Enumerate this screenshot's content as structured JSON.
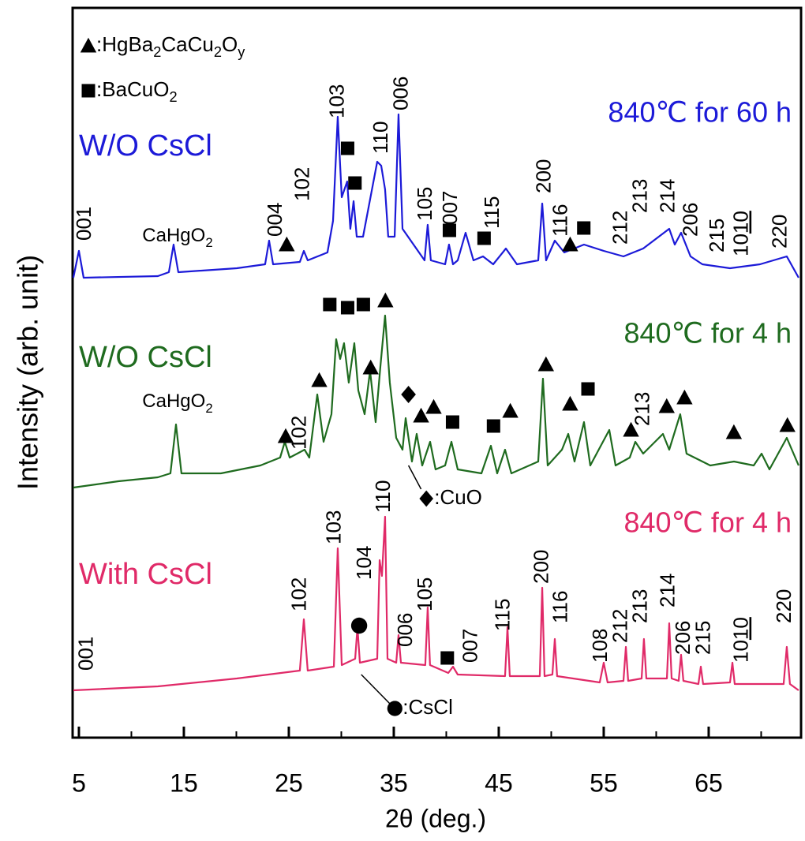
{
  "chart_data": {
    "type": "line",
    "x_label": "2θ (deg.)",
    "y_label": "Intensity (arb. unit)",
    "xlim": [
      4.4,
      73.8
    ],
    "xticks": [
      5,
      15,
      25,
      35,
      45,
      55,
      65
    ],
    "xminorticks": [
      10,
      20,
      30,
      40,
      50,
      60,
      70
    ],
    "ylim": [
      0,
      925
    ],
    "legend": [
      {
        "kind": "triangle",
        "style": "sub",
        "text": [
          ":HgBa",
          "2",
          "CaCu",
          "2",
          "O",
          "y"
        ]
      },
      {
        "kind": "square",
        "style": "sub",
        "text": [
          ":BaCuO",
          "2"
        ]
      }
    ],
    "series": [
      {
        "name": "W/O CsCl",
        "condition": "840℃ for 60 h",
        "color": "#1c1ad8",
        "x": [
          4.47,
          5,
          5.45,
          12.52,
          13.57,
          14.02,
          14.47,
          20.04,
          22.74,
          23.12,
          23.5,
          26.05,
          26.43,
          26.8,
          28.68,
          29.21,
          29.66,
          30.04,
          30.56,
          30.86,
          31.17,
          31.47,
          32.07,
          33.42,
          33.8,
          34.17,
          34.47,
          35.08,
          35.45,
          35.83,
          37.93,
          38.23,
          38.53,
          39.89,
          40.26,
          40.64,
          41.09,
          41.84,
          42.59,
          43.5,
          44.47,
          45.68,
          46.73,
          48.76,
          49.14,
          49.51,
          50.34,
          51.24,
          53.12,
          55.0,
          56.88,
          58.76,
          61.24,
          61.77,
          62.37,
          63.27,
          64.4,
          67.03,
          69.89,
          72.44,
          73.57
        ],
        "values": [
          583,
          617,
          583,
          585,
          590,
          625,
          590,
          595,
          600,
          630,
          600,
          603,
          617,
          605,
          615,
          655,
          787,
          685,
          705,
          645,
          680,
          635,
          635,
          730,
          725,
          695,
          635,
          635,
          790,
          645,
          605,
          650,
          605,
          600,
          625,
          600,
          605,
          640,
          605,
          610,
          600,
          620,
          600,
          605,
          677,
          605,
          630,
          615,
          625,
          617,
          610,
          620,
          645,
          625,
          640,
          610,
          600,
          595,
          600,
          610,
          583
        ],
        "labels": [
          {
            "text": "001",
            "x": 5.6,
            "y": 630
          },
          {
            "text": "004",
            "x": 23.8,
            "y": 635
          },
          {
            "text": "102",
            "x": 26.4,
            "y": 680
          },
          {
            "text": "103",
            "x": 29.7,
            "y": 785
          },
          {
            "text": "110",
            "x": 33.9,
            "y": 740
          },
          {
            "text": "006",
            "x": 35.8,
            "y": 795
          },
          {
            "text": "105",
            "x": 38.1,
            "y": 655
          },
          {
            "text": "007",
            "x": 40.5,
            "y": 650
          },
          {
            "text": "115",
            "x": 44.5,
            "y": 645
          },
          {
            "text": "200",
            "x": 49.4,
            "y": 690
          },
          {
            "text": "116",
            "x": 51.0,
            "y": 635
          },
          {
            "text": "212",
            "x": 56.7,
            "y": 625
          },
          {
            "text": "213",
            "x": 58.6,
            "y": 665
          },
          {
            "text": "214",
            "x": 61.2,
            "y": 665
          },
          {
            "text": "206",
            "x": 63.4,
            "y": 635
          },
          {
            "text": "215",
            "x": 65.9,
            "y": 615
          },
          {
            "text": [
              "10",
              "10"
            ],
            "style": "underline",
            "x": 68.2,
            "y": 610
          },
          {
            "text": "220",
            "x": 71.9,
            "y": 620
          }
        ],
        "notes": [
          {
            "text": [
              "CaHgO",
              "2"
            ],
            "style": "sub",
            "x": 14.4,
            "y": 635
          }
        ],
        "markers": [
          {
            "kind": "triangle",
            "x": 24.8,
            "y": 625
          },
          {
            "kind": "square",
            "x": 30.6,
            "y": 747
          },
          {
            "kind": "square",
            "x": 31.3,
            "y": 703
          },
          {
            "kind": "square",
            "x": 40.3,
            "y": 643
          },
          {
            "kind": "square",
            "x": 43.6,
            "y": 633
          },
          {
            "kind": "triangle",
            "x": 51.8,
            "y": 625
          },
          {
            "kind": "square",
            "x": 53.1,
            "y": 646
          }
        ]
      },
      {
        "name": "W/O CsCl",
        "condition": "840℃ for 4 h",
        "color": "#1f6b1f",
        "x": [
          4.47,
          8.76,
          12.52,
          13.72,
          14.25,
          14.77,
          18.53,
          22.29,
          24.17,
          24.62,
          25.08,
          26.5,
          26.95,
          27.71,
          28.31,
          29.06,
          29.51,
          29.89,
          30.26,
          30.71,
          31.24,
          31.62,
          32.22,
          32.74,
          33.27,
          33.72,
          34.17,
          34.62,
          35.23,
          35.83,
          36.13,
          36.73,
          37.18,
          37.71,
          38.46,
          38.98,
          39.89,
          40.49,
          41.09,
          43.35,
          44.25,
          44.85,
          45.6,
          46.2,
          48.76,
          49.21,
          49.66,
          51.02,
          51.62,
          52.22,
          53.12,
          53.72,
          55.53,
          56.13,
          57.48,
          58.01,
          58.76,
          60.64,
          61.24,
          62.29,
          62.89,
          65.15,
          67.41,
          69.29,
          70.04,
          70.79,
          72.44,
          73.57
        ],
        "values": [
          317,
          325,
          330,
          335,
          397,
          335,
          335,
          345,
          355,
          375,
          355,
          365,
          355,
          435,
          375,
          410,
          505,
          480,
          500,
          450,
          500,
          440,
          410,
          465,
          400,
          470,
          535,
          450,
          380,
          365,
          405,
          350,
          385,
          345,
          375,
          340,
          345,
          375,
          340,
          335,
          370,
          335,
          365,
          335,
          350,
          455,
          345,
          365,
          385,
          350,
          400,
          345,
          390,
          345,
          355,
          375,
          360,
          385,
          365,
          410,
          360,
          345,
          350,
          345,
          360,
          340,
          380,
          345
        ],
        "labels": [
          {
            "text": "102",
            "x": 26.1,
            "y": 365
          },
          {
            "text": "213",
            "x": 58.8,
            "y": 395
          }
        ],
        "notes": [
          {
            "text": [
              "CaHgO",
              "2"
            ],
            "style": "sub",
            "x": 14.4,
            "y": 425
          }
        ],
        "markers": [
          {
            "kind": "triangle",
            "x": 24.7,
            "y": 382
          },
          {
            "kind": "triangle",
            "x": 27.9,
            "y": 453
          },
          {
            "kind": "square",
            "x": 28.9,
            "y": 549
          },
          {
            "kind": "square",
            "x": 30.6,
            "y": 545
          },
          {
            "kind": "square",
            "x": 32.1,
            "y": 549
          },
          {
            "kind": "triangle",
            "x": 34.2,
            "y": 554
          },
          {
            "kind": "triangle",
            "x": 32.8,
            "y": 469
          },
          {
            "kind": "diamond",
            "x": 36.4,
            "y": 435
          },
          {
            "kind": "triangle",
            "x": 37.6,
            "y": 408
          },
          {
            "kind": "triangle",
            "x": 38.8,
            "y": 419
          },
          {
            "kind": "square",
            "x": 40.6,
            "y": 400
          },
          {
            "kind": "square",
            "x": 44.5,
            "y": 395
          },
          {
            "kind": "triangle",
            "x": 46.1,
            "y": 414
          },
          {
            "kind": "triangle",
            "x": 49.5,
            "y": 473
          },
          {
            "kind": "triangle",
            "x": 51.8,
            "y": 423
          },
          {
            "kind": "square",
            "x": 53.5,
            "y": 442
          },
          {
            "kind": "triangle",
            "x": 57.6,
            "y": 390
          },
          {
            "kind": "triangle",
            "x": 61.0,
            "y": 420
          },
          {
            "kind": "triangle",
            "x": 62.7,
            "y": 431
          },
          {
            "kind": "triangle",
            "x": 67.4,
            "y": 387
          },
          {
            "kind": "triangle",
            "x": 72.5,
            "y": 396
          }
        ],
        "callout": {
          "kind": "diamond",
          "text": ":CuO",
          "from": [
            36.4,
            345
          ],
          "to": [
            37.6,
            315
          ],
          "x": 38.1,
          "y": 303
        }
      },
      {
        "name": "With CsCl",
        "condition": "840℃ for 4 h",
        "color": "#e02a68",
        "x": [
          4.47,
          12.52,
          20.04,
          26.05,
          26.43,
          26.8,
          29.29,
          29.66,
          30.04,
          31.32,
          31.54,
          31.77,
          33.42,
          33.65,
          33.87,
          34.17,
          34.4,
          35.23,
          35.45,
          35.68,
          38.0,
          38.23,
          38.45,
          40.19,
          40.64,
          41.09,
          45.6,
          45.83,
          46.05,
          48.91,
          49.14,
          49.36,
          50.11,
          50.34,
          50.56,
          54.62,
          55.0,
          55.37,
          56.88,
          57.11,
          57.33,
          58.61,
          58.83,
          59.06,
          61.02,
          61.24,
          61.47,
          62.14,
          62.37,
          62.59,
          64.02,
          64.25,
          64.47,
          67.03,
          67.26,
          67.48,
          72.14,
          72.44,
          72.74,
          73.57
        ],
        "values": [
          60,
          65,
          75,
          85,
          150,
          85,
          90,
          240,
          92,
          100,
          140,
          95,
          100,
          225,
          205,
          280,
          100,
          95,
          130,
          95,
          92,
          165,
          92,
          82,
          90,
          80,
          78,
          140,
          78,
          78,
          190,
          78,
          80,
          125,
          78,
          70,
          95,
          70,
          72,
          115,
          72,
          75,
          125,
          75,
          75,
          145,
          75,
          72,
          105,
          72,
          68,
          90,
          68,
          70,
          95,
          68,
          68,
          115,
          68,
          60
        ],
        "labels": [
          {
            "text": "001",
            "x": 5.8,
            "y": 85
          },
          {
            "text": "102",
            "x": 26.1,
            "y": 160
          },
          {
            "text": "103",
            "x": 29.4,
            "y": 245
          },
          {
            "text": "104",
            "x": 32.3,
            "y": 200
          },
          {
            "text": "110",
            "x": 34.1,
            "y": 285
          },
          {
            "text": "006",
            "x": 36.2,
            "y": 115
          },
          {
            "text": "105",
            "x": 38.1,
            "y": 160
          },
          {
            "text": "007",
            "x": 42.4,
            "y": 95
          },
          {
            "text": "115",
            "x": 45.5,
            "y": 135
          },
          {
            "text": "200",
            "x": 49.2,
            "y": 195
          },
          {
            "text": "116",
            "x": 51.0,
            "y": 145
          },
          {
            "text": "108",
            "x": 54.8,
            "y": 95
          },
          {
            "text": "212",
            "x": 56.7,
            "y": 120
          },
          {
            "text": "213",
            "x": 58.6,
            "y": 145
          },
          {
            "text": "214",
            "x": 61.2,
            "y": 165
          },
          {
            "text": "206",
            "x": 62.7,
            "y": 105
          },
          {
            "text": "215",
            "x": 64.6,
            "y": 105
          },
          {
            "text": [
              "10",
              "10"
            ],
            "style": "underline",
            "x": 68.2,
            "y": 95
          },
          {
            "text": "220",
            "x": 72.3,
            "y": 145
          }
        ],
        "notes": [],
        "markers": [
          {
            "kind": "circle",
            "x": 31.7,
            "y": 142
          },
          {
            "kind": "square",
            "x": 40.1,
            "y": 101
          }
        ],
        "callout": {
          "kind": "circle",
          "text": ":CsCl",
          "from": [
            31.9,
            80
          ],
          "to": [
            34.7,
            42
          ],
          "x": 35.1,
          "y": 37
        }
      }
    ]
  }
}
